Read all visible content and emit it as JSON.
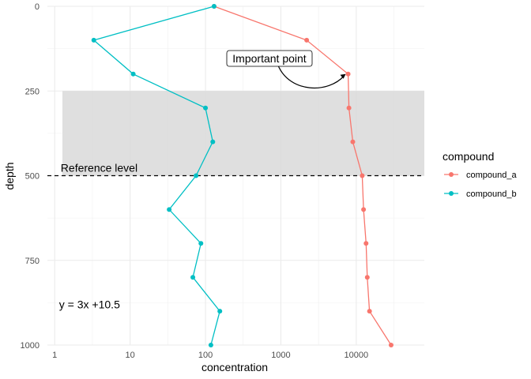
{
  "chart_data": {
    "type": "line",
    "xlabel": "concentration",
    "ylabel": "depth",
    "x_scale": "log10",
    "xlim": [
      0.8,
      80000
    ],
    "ylim": [
      0,
      1000
    ],
    "y_reversed": true,
    "x_ticks": [
      1,
      10,
      100,
      1000,
      10000
    ],
    "x_tick_labels": [
      "1",
      "10",
      "100",
      "1000",
      "10000"
    ],
    "y_ticks": [
      0,
      250,
      500,
      750,
      1000
    ],
    "y_tick_labels": [
      "0",
      "250",
      "500",
      "750",
      "1000"
    ],
    "grid": true,
    "legend": {
      "title": "compound",
      "position": "right",
      "entries": [
        {
          "name": "compound_a",
          "color": "#F8766D"
        },
        {
          "name": "compound_b",
          "color": "#00BFC4"
        }
      ]
    },
    "series": [
      {
        "name": "compound_a",
        "color": "#F8766D",
        "points": [
          {
            "x": 130,
            "y": 0
          },
          {
            "x": 2200,
            "y": 100
          },
          {
            "x": 7800,
            "y": 200
          },
          {
            "x": 8000,
            "y": 300
          },
          {
            "x": 9000,
            "y": 400
          },
          {
            "x": 12000,
            "y": 500
          },
          {
            "x": 12500,
            "y": 600
          },
          {
            "x": 13500,
            "y": 700
          },
          {
            "x": 14000,
            "y": 800
          },
          {
            "x": 15000,
            "y": 900
          },
          {
            "x": 29000,
            "y": 1000
          }
        ]
      },
      {
        "name": "compound_b",
        "color": "#00BFC4",
        "points": [
          {
            "x": 130,
            "y": 0
          },
          {
            "x": 3.3,
            "y": 100
          },
          {
            "x": 11,
            "y": 200
          },
          {
            "x": 100,
            "y": 300
          },
          {
            "x": 125,
            "y": 400
          },
          {
            "x": 75,
            "y": 500
          },
          {
            "x": 33,
            "y": 600
          },
          {
            "x": 87,
            "y": 700
          },
          {
            "x": 68,
            "y": 800
          },
          {
            "x": 155,
            "y": 900
          },
          {
            "x": 118,
            "y": 1000
          }
        ]
      }
    ],
    "shaded_band": {
      "y_from": 250,
      "y_to": 500,
      "color": "#d9d9d9"
    },
    "reference_line": {
      "y": 500,
      "label": "Reference level",
      "label_x": 1.2
    },
    "annotations": [
      {
        "text": "Important point",
        "label_x": 600,
        "label_y": 155,
        "arrow_to_x": 7800,
        "arrow_to_y": 200
      },
      {
        "text": "y = 3x +10.5",
        "x": 1.2,
        "y": 880
      }
    ]
  }
}
